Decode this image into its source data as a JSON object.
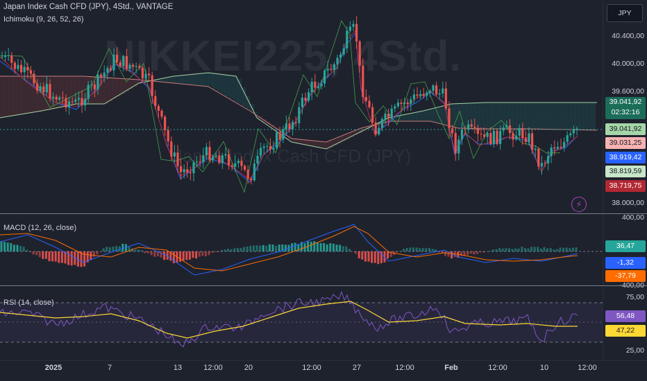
{
  "main": {
    "title": "Japan Index Cash CFD (JPY), 4Std., VANTAGE",
    "indicator": "Ichimoku (9, 26, 52, 26)",
    "watermark": "NIKKEI225, 4Std.",
    "watermark_sub": "Japan Index Cash CFD (JPY)",
    "currency": "JPY",
    "ticks": [
      "40.400,00",
      "40.000,00",
      "39.600,00",
      "38.000,00"
    ],
    "badges": [
      {
        "text": "39.041,92",
        "sub": "02:32:16",
        "bg": "#1b6d5a",
        "fg": "#ffffff"
      },
      {
        "text": "39.041,92",
        "bg": "#a5d6a7",
        "fg": "#131722"
      },
      {
        "text": "39.031,25",
        "bg": "#f7b2b2",
        "fg": "#131722"
      },
      {
        "text": "38.919,42",
        "bg": "#2962ff",
        "fg": "#ffffff"
      },
      {
        "text": "38.819,59",
        "bg": "#c8e6c9",
        "fg": "#131722"
      },
      {
        "text": "38.719,75",
        "bg": "#b22833",
        "fg": "#ffffff"
      }
    ]
  },
  "macd": {
    "title": "MACD (12, 26, close)",
    "ticks": [
      "400,00",
      "-400,00"
    ],
    "badges": [
      {
        "text": "36,47",
        "bg": "#26a69a",
        "fg": "#ffffff"
      },
      {
        "text": "-1,32",
        "bg": "#2962ff",
        "fg": "#ffffff"
      },
      {
        "text": "-37,79",
        "bg": "#ff6d00",
        "fg": "#ffffff"
      }
    ]
  },
  "rsi": {
    "title": "RSI (14, close)",
    "ticks": [
      "75,00",
      "25,00"
    ],
    "badges": [
      {
        "text": "56,48",
        "bg": "#7e57c2",
        "fg": "#ffffff"
      },
      {
        "text": "47,22",
        "bg": "#fdd835",
        "fg": "#131722"
      }
    ]
  },
  "xaxis": {
    "labels": [
      "2025",
      "7",
      "13",
      "12:00",
      "20",
      "12:00",
      "27",
      "12:00",
      "Feb",
      "12:00",
      "10",
      "12:00"
    ],
    "bold": [
      "2025",
      "Feb"
    ]
  },
  "colors": {
    "up": "#26a69a",
    "down": "#ef5350",
    "bg": "#1e222d",
    "grid": "#2a2e39"
  }
}
